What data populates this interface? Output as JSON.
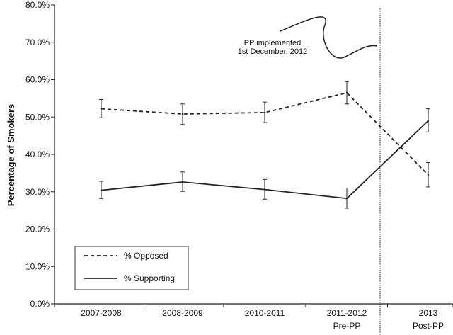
{
  "chart_data": {
    "type": "line",
    "categories": [
      "2007-2008",
      "2008-2009",
      "2010-2011",
      "2011-2012",
      "2013"
    ],
    "category_sublabels": [
      "",
      "",
      "",
      "Pre-PP",
      "Post-PP"
    ],
    "ylabel": "Percentage of Smokers",
    "xlabel": "",
    "title": "",
    "ylim": [
      0,
      80
    ],
    "yticks": [
      0,
      10,
      20,
      30,
      40,
      50,
      60,
      70,
      80
    ],
    "ytick_labels": [
      "0.0%",
      "10.0%",
      "20.0%",
      "30.0%",
      "40.0%",
      "50.0%",
      "60.0%",
      "70.0%",
      "80.0%"
    ],
    "grid": false,
    "legend_position": "bottom-left",
    "series": [
      {
        "name": "% Opposed",
        "style": "dashed",
        "values": [
          52.2,
          50.8,
          51.2,
          56.5,
          34.5
        ],
        "error_low": [
          49.8,
          48.0,
          48.5,
          53.5,
          31.3
        ],
        "error_high": [
          54.7,
          53.5,
          54.0,
          59.5,
          37.8
        ]
      },
      {
        "name": "% Supporting",
        "style": "solid",
        "values": [
          30.4,
          32.6,
          30.6,
          28.2,
          49.0
        ],
        "error_low": [
          28.2,
          30.1,
          28.0,
          25.6,
          46.0
        ],
        "error_high": [
          32.8,
          35.3,
          33.3,
          31.0,
          52.2
        ]
      }
    ],
    "annotations": [
      {
        "lines": [
          "PP implemented",
          "1st December, 2012"
        ],
        "marks_between_categories": [
          "2011-2012",
          "2013"
        ]
      }
    ],
    "line_color": "#222222"
  }
}
